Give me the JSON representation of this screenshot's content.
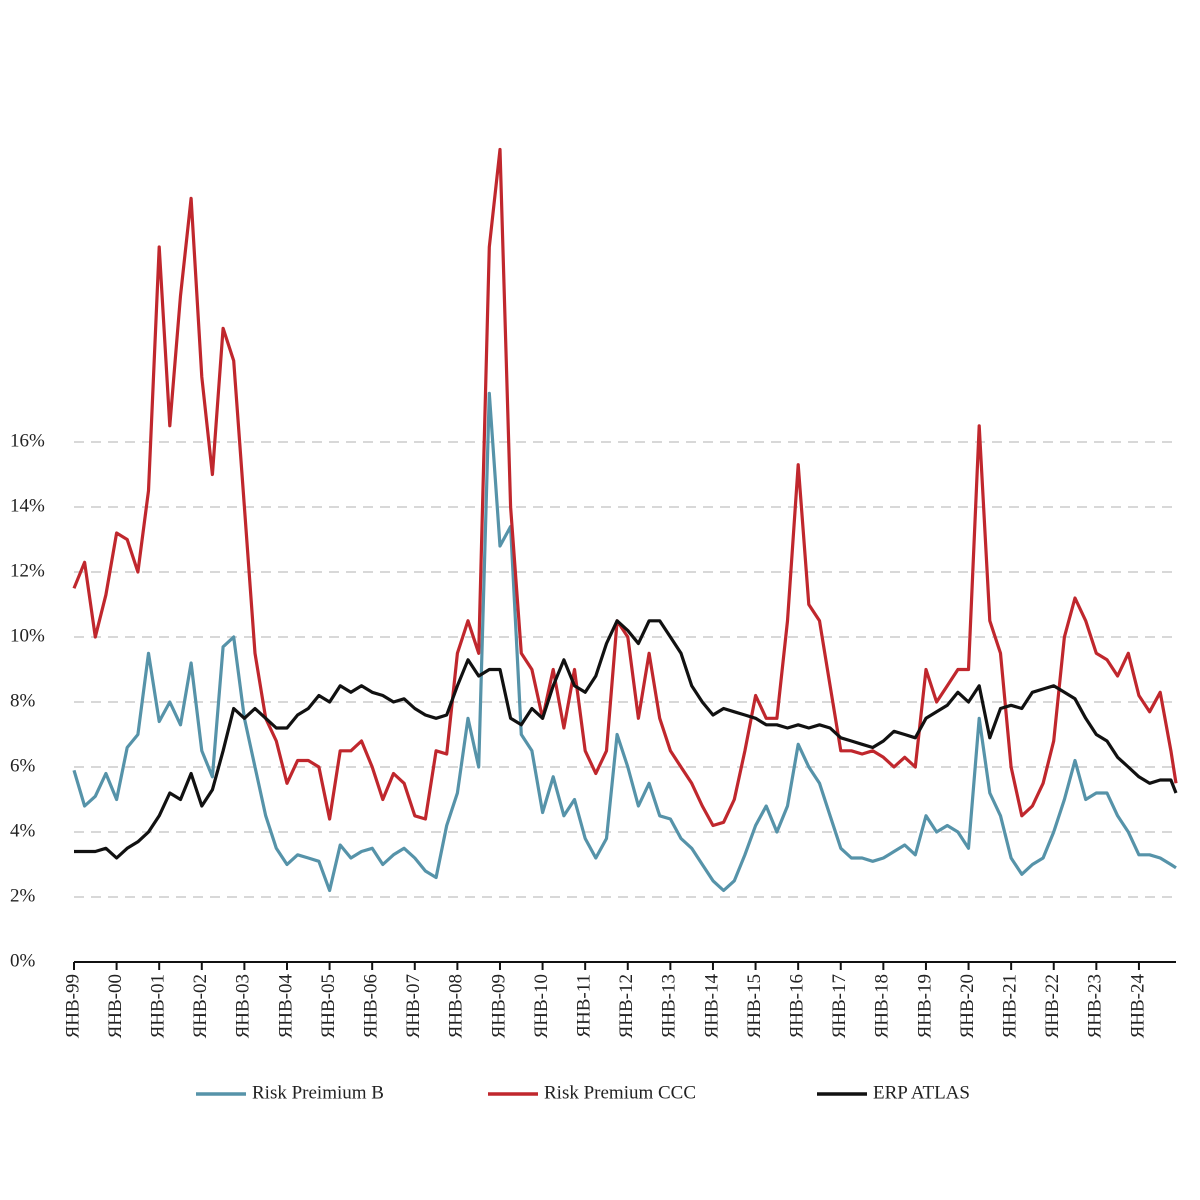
{
  "chart_data": {
    "type": "line",
    "x": [
      1999,
      1999.25,
      1999.5,
      1999.75,
      2000,
      2000.25,
      2000.5,
      2000.75,
      2001,
      2001.25,
      2001.5,
      2001.75,
      2002,
      2002.25,
      2002.5,
      2002.75,
      2003,
      2003.25,
      2003.5,
      2003.75,
      2004,
      2004.25,
      2004.5,
      2004.75,
      2005,
      2005.25,
      2005.5,
      2005.75,
      2006,
      2006.25,
      2006.5,
      2006.75,
      2007,
      2007.25,
      2007.5,
      2007.75,
      2008,
      2008.25,
      2008.5,
      2008.75,
      2009,
      2009.25,
      2009.5,
      2009.75,
      2010,
      2010.25,
      2010.5,
      2010.75,
      2011,
      2011.25,
      2011.5,
      2011.75,
      2012,
      2012.25,
      2012.5,
      2012.75,
      2013,
      2013.25,
      2013.5,
      2013.75,
      2014,
      2014.25,
      2014.5,
      2014.75,
      2015,
      2015.25,
      2015.5,
      2015.75,
      2016,
      2016.25,
      2016.5,
      2016.75,
      2017,
      2017.25,
      2017.5,
      2017.75,
      2018,
      2018.25,
      2018.5,
      2018.75,
      2019,
      2019.25,
      2019.5,
      2019.75,
      2020,
      2020.25,
      2020.5,
      2020.75,
      2021,
      2021.25,
      2021.5,
      2021.75,
      2022,
      2022.25,
      2022.5,
      2022.75,
      2023,
      2023.25,
      2023.5,
      2023.75,
      2024,
      2024.25,
      2024.5,
      2024.75,
      2024.87
    ],
    "series": [
      {
        "name": "Risk Preimium B",
        "color": "#5693a9",
        "values": [
          5.9,
          4.8,
          5.1,
          5.8,
          5.0,
          6.6,
          7.0,
          9.5,
          7.4,
          8.0,
          7.3,
          9.2,
          6.5,
          5.7,
          9.7,
          10.0,
          7.5,
          6.0,
          4.5,
          3.5,
          3.0,
          3.3,
          3.2,
          3.1,
          2.2,
          3.6,
          3.2,
          3.4,
          3.5,
          3.0,
          3.3,
          3.5,
          3.2,
          2.8,
          2.6,
          4.2,
          5.2,
          7.5,
          6.0,
          17.5,
          12.8,
          13.4,
          7.0,
          6.5,
          4.6,
          5.7,
          4.5,
          5.0,
          3.8,
          3.2,
          3.8,
          7.0,
          6.0,
          4.8,
          5.5,
          4.5,
          4.4,
          3.8,
          3.5,
          3.0,
          2.5,
          2.2,
          2.5,
          3.3,
          4.2,
          4.8,
          4.0,
          4.8,
          6.7,
          6.0,
          5.5,
          4.5,
          3.5,
          3.2,
          3.2,
          3.1,
          3.2,
          3.4,
          3.6,
          3.3,
          4.5,
          4.0,
          4.2,
          4.0,
          3.5,
          7.5,
          5.2,
          4.5,
          3.2,
          2.7,
          3.0,
          3.2,
          4.0,
          5.0,
          6.2,
          5.0,
          5.2,
          5.2,
          4.5,
          4.0,
          3.3,
          3.3,
          3.2,
          3.0,
          2.9
        ]
      },
      {
        "name": "Risk Premium CCC",
        "color": "#c0272d",
        "values": [
          11.5,
          12.3,
          10.0,
          11.3,
          13.2,
          13.0,
          12.0,
          14.5,
          22.0,
          16.5,
          20.5,
          23.5,
          18.0,
          15.0,
          19.5,
          18.5,
          14.0,
          9.5,
          7.5,
          6.8,
          5.5,
          6.2,
          6.2,
          6.0,
          4.4,
          6.5,
          6.5,
          6.8,
          6.0,
          5.0,
          5.8,
          5.5,
          4.5,
          4.4,
          6.5,
          6.4,
          9.5,
          10.5,
          9.5,
          22.0,
          25.0,
          14.0,
          9.5,
          9.0,
          7.5,
          9.0,
          7.2,
          9.0,
          6.5,
          5.8,
          6.5,
          10.5,
          10.0,
          7.5,
          9.5,
          7.5,
          6.5,
          6.0,
          5.5,
          4.8,
          4.2,
          4.3,
          5.0,
          6.5,
          8.2,
          7.5,
          7.5,
          10.5,
          15.3,
          11.0,
          10.5,
          8.5,
          6.5,
          6.5,
          6.4,
          6.5,
          6.3,
          6.0,
          6.3,
          6.0,
          9.0,
          8.0,
          8.5,
          9.0,
          9.0,
          16.5,
          10.5,
          9.5,
          6.0,
          4.5,
          4.8,
          5.5,
          6.8,
          10.0,
          11.2,
          10.5,
          9.5,
          9.3,
          8.8,
          9.5,
          8.2,
          7.7,
          8.3,
          6.5,
          5.5
        ]
      },
      {
        "name": "ERP ATLAS",
        "color": "#111111",
        "values": [
          3.4,
          3.4,
          3.4,
          3.5,
          3.2,
          3.5,
          3.7,
          4.0,
          4.5,
          5.2,
          5.0,
          5.8,
          4.8,
          5.3,
          6.5,
          7.8,
          7.5,
          7.8,
          7.5,
          7.2,
          7.2,
          7.6,
          7.8,
          8.2,
          8.0,
          8.5,
          8.3,
          8.5,
          8.3,
          8.2,
          8.0,
          8.1,
          7.8,
          7.6,
          7.5,
          7.6,
          8.5,
          9.3,
          8.8,
          9.0,
          9.0,
          7.5,
          7.3,
          7.8,
          7.5,
          8.5,
          9.3,
          8.5,
          8.3,
          8.8,
          9.8,
          10.5,
          10.2,
          9.8,
          10.5,
          10.5,
          10.0,
          9.5,
          8.5,
          8.0,
          7.6,
          7.8,
          7.7,
          7.6,
          7.5,
          7.3,
          7.3,
          7.2,
          7.3,
          7.2,
          7.3,
          7.2,
          6.9,
          6.8,
          6.7,
          6.6,
          6.8,
          7.1,
          7.0,
          6.9,
          7.5,
          7.7,
          7.9,
          8.3,
          8.0,
          8.5,
          6.9,
          7.8,
          7.9,
          7.8,
          8.3,
          8.4,
          8.5,
          8.3,
          8.1,
          7.5,
          7.0,
          6.8,
          6.3,
          6.0,
          5.7,
          5.5,
          5.6,
          5.6,
          5.2
        ]
      }
    ],
    "xlim": [
      1999,
      2024.87
    ],
    "xticks": [
      {
        "value": 1999,
        "label": "ЯНВ-99"
      },
      {
        "value": 2000,
        "label": "ЯНВ-00"
      },
      {
        "value": 2001,
        "label": "ЯНВ-01"
      },
      {
        "value": 2002,
        "label": "ЯНВ-02"
      },
      {
        "value": 2003,
        "label": "ЯНВ-03"
      },
      {
        "value": 2004,
        "label": "ЯНВ-04"
      },
      {
        "value": 2005,
        "label": "ЯНВ-05"
      },
      {
        "value": 2006,
        "label": "ЯНВ-06"
      },
      {
        "value": 2007,
        "label": "ЯНВ-07"
      },
      {
        "value": 2008,
        "label": "ЯНВ-08"
      },
      {
        "value": 2009,
        "label": "ЯНВ-09"
      },
      {
        "value": 2010,
        "label": "ЯНВ-10"
      },
      {
        "value": 2011,
        "label": "ЯНВ-11"
      },
      {
        "value": 2012,
        "label": "ЯНВ-12"
      },
      {
        "value": 2013,
        "label": "ЯНВ-13"
      },
      {
        "value": 2014,
        "label": "ЯНВ-14"
      },
      {
        "value": 2015,
        "label": "ЯНВ-15"
      },
      {
        "value": 2016,
        "label": "ЯНВ-16"
      },
      {
        "value": 2017,
        "label": "ЯНВ-17"
      },
      {
        "value": 2018,
        "label": "ЯНВ-18"
      },
      {
        "value": 2019,
        "label": "ЯНВ-19"
      },
      {
        "value": 2020,
        "label": "ЯНВ-20"
      },
      {
        "value": 2021,
        "label": "ЯНВ-21"
      },
      {
        "value": 2022,
        "label": "ЯНВ-22"
      },
      {
        "value": 2023,
        "label": "ЯНВ-23"
      },
      {
        "value": 2024,
        "label": "ЯНВ-24"
      }
    ],
    "ylim": [
      0,
      28
    ],
    "yticks": [
      {
        "value": 0,
        "label": "0%"
      },
      {
        "value": 2,
        "label": "2%"
      },
      {
        "value": 4,
        "label": "4%"
      },
      {
        "value": 6,
        "label": "6%"
      },
      {
        "value": 8,
        "label": "8%"
      },
      {
        "value": 10,
        "label": "10%"
      },
      {
        "value": 12,
        "label": "12%"
      },
      {
        "value": 14,
        "label": "14%"
      },
      {
        "value": 16,
        "label": "16%"
      }
    ],
    "grid": true,
    "legend": "bottom"
  }
}
